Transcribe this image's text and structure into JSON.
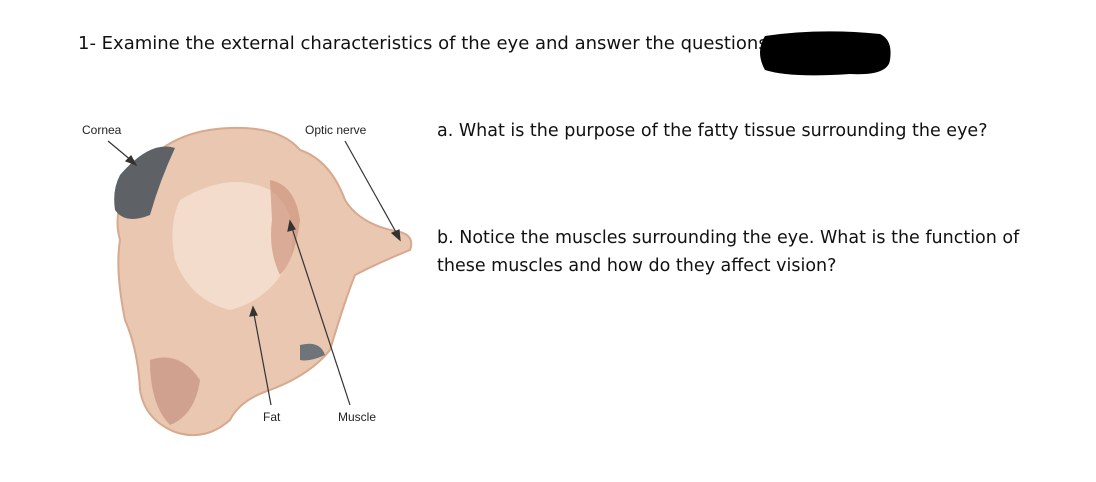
{
  "header": {
    "title": "1- Examine the external characteristics of the eye and answer the questions"
  },
  "figure": {
    "labels": {
      "cornea": "Cornea",
      "optic_nerve": "Optic nerve",
      "fat": "Fat",
      "muscle": "Muscle"
    }
  },
  "questions": [
    "a. What is the purpose of the fatty tissue surrounding the eye?",
    "b. Notice the muscles surrounding the eye. What is the function of these muscles and how do they affect vision?"
  ]
}
